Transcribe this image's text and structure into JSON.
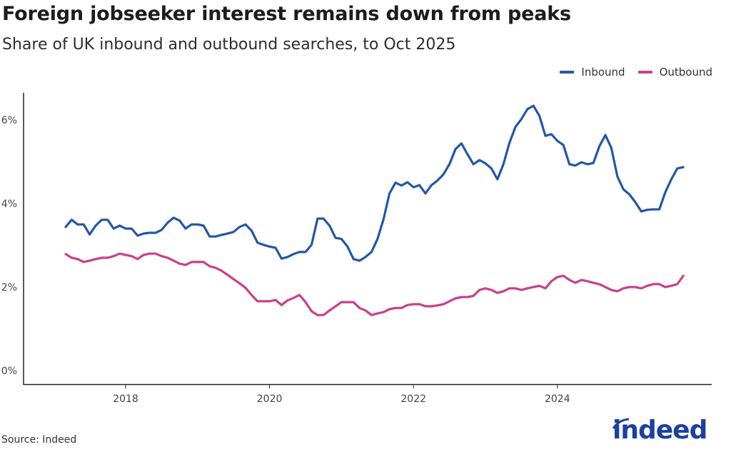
{
  "title": "Foreign jobseeker interest remains down from peaks",
  "subtitle": "Share of UK inbound and outbound searches, to Oct 2025",
  "source": "Source: Indeed",
  "logo_text": "indeed",
  "chart_data": {
    "type": "line",
    "title": "Foreign jobseeker interest remains down from peaks",
    "subtitle": "Share of UK inbound and outbound searches, to Oct 2025",
    "xlabel": "",
    "ylabel": "",
    "x_start": "2017-03",
    "x_frequency": "monthly",
    "x_end": "2025-10",
    "x_ticks": [
      "2018",
      "2020",
      "2022",
      "2024"
    ],
    "y_ticks": [
      "0%",
      "2%",
      "4%",
      "6%"
    ],
    "ylim": [
      0,
      6.6
    ],
    "y_unit": "%",
    "grid": false,
    "legend_position": "top-right",
    "series": [
      {
        "name": "Inbound",
        "color": "#2457a7",
        "values": [
          3.44,
          3.61,
          3.5,
          3.5,
          3.26,
          3.47,
          3.61,
          3.61,
          3.4,
          3.47,
          3.4,
          3.4,
          3.23,
          3.28,
          3.3,
          3.3,
          3.37,
          3.54,
          3.66,
          3.59,
          3.4,
          3.5,
          3.5,
          3.47,
          3.21,
          3.21,
          3.25,
          3.28,
          3.32,
          3.44,
          3.5,
          3.35,
          3.06,
          3.01,
          2.97,
          2.94,
          2.68,
          2.72,
          2.79,
          2.84,
          2.84,
          3.01,
          3.64,
          3.64,
          3.47,
          3.18,
          3.15,
          2.97,
          2.67,
          2.63,
          2.72,
          2.84,
          3.15,
          3.62,
          4.24,
          4.5,
          4.43,
          4.51,
          4.39,
          4.44,
          4.24,
          4.44,
          4.55,
          4.7,
          4.94,
          5.3,
          5.44,
          5.18,
          4.94,
          5.04,
          4.96,
          4.84,
          4.58,
          4.94,
          5.45,
          5.83,
          6.02,
          6.26,
          6.34,
          6.1,
          5.62,
          5.66,
          5.5,
          5.4,
          4.94,
          4.91,
          4.99,
          4.94,
          4.97,
          5.37,
          5.64,
          5.33,
          4.65,
          4.34,
          4.22,
          4.03,
          3.81,
          3.85,
          3.86,
          3.86,
          4.27,
          4.58,
          4.84,
          4.87
        ]
      },
      {
        "name": "Outbound",
        "color": "#c9408b",
        "values": [
          2.79,
          2.7,
          2.67,
          2.6,
          2.63,
          2.67,
          2.7,
          2.7,
          2.74,
          2.8,
          2.77,
          2.74,
          2.67,
          2.77,
          2.8,
          2.8,
          2.74,
          2.7,
          2.63,
          2.56,
          2.53,
          2.6,
          2.6,
          2.6,
          2.5,
          2.46,
          2.39,
          2.29,
          2.19,
          2.09,
          1.98,
          1.81,
          1.66,
          1.66,
          1.66,
          1.69,
          1.57,
          1.68,
          1.74,
          1.81,
          1.64,
          1.42,
          1.33,
          1.33,
          1.44,
          1.54,
          1.64,
          1.64,
          1.64,
          1.5,
          1.44,
          1.33,
          1.37,
          1.4,
          1.47,
          1.5,
          1.5,
          1.57,
          1.59,
          1.59,
          1.54,
          1.54,
          1.56,
          1.59,
          1.66,
          1.73,
          1.76,
          1.76,
          1.79,
          1.93,
          1.97,
          1.93,
          1.86,
          1.9,
          1.97,
          1.97,
          1.93,
          1.97,
          2.0,
          2.03,
          1.97,
          2.14,
          2.24,
          2.27,
          2.17,
          2.1,
          2.17,
          2.14,
          2.1,
          2.07,
          2.0,
          1.93,
          1.9,
          1.97,
          2.0,
          2.0,
          1.97,
          2.03,
          2.07,
          2.07,
          2.0,
          2.03,
          2.07,
          2.27
        ]
      }
    ]
  }
}
